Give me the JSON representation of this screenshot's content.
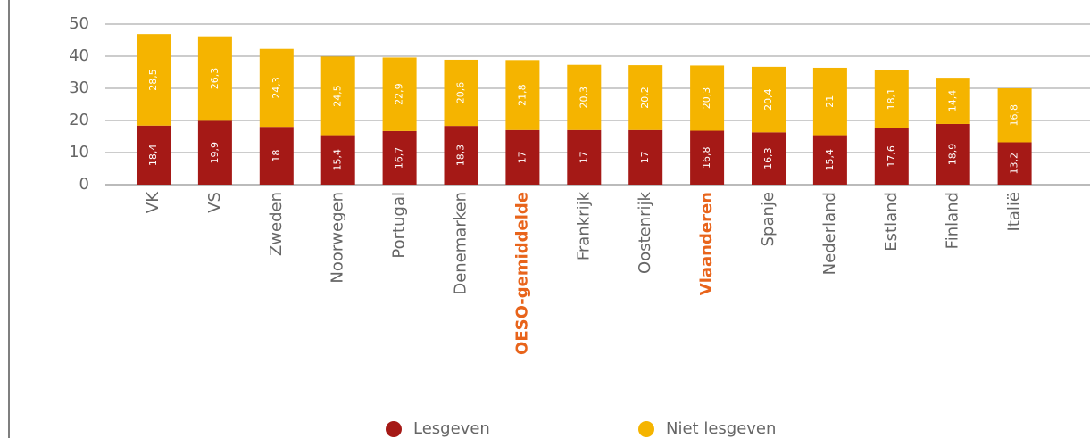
{
  "chart_data": {
    "type": "stacked_bar",
    "categories": [
      "VK",
      "VS",
      "Zweden",
      "Noorwegen",
      "Portugal",
      "Denemarken",
      "OESO-gemiddelde",
      "Frankrijk",
      "Oostenrijk",
      "Vlaanderen",
      "Spanje",
      "Nederland",
      "Estland",
      "Finland",
      "Italië"
    ],
    "highlighted": [
      6,
      9
    ],
    "series": [
      {
        "name": "Lesgeven",
        "color": "#a51916",
        "values": [
          18.4,
          19.9,
          18,
          15.4,
          16.7,
          18.3,
          17,
          17,
          17,
          16.8,
          16.3,
          15.4,
          17.6,
          18.9,
          13.2
        ],
        "value_labels": [
          "18,4",
          "19,9",
          "18",
          "15,4",
          "16,7",
          "18,3",
          "17",
          "17",
          "17",
          "16,8",
          "16,3",
          "15,4",
          "17,6",
          "18,9",
          "13,2"
        ]
      },
      {
        "name": "Niet lesgeven",
        "color": "#f5b400",
        "values": [
          28.5,
          26.3,
          24.3,
          24.5,
          22.9,
          20.6,
          21.8,
          20.3,
          20.2,
          20.3,
          20.4,
          21,
          18.1,
          14.4,
          16.8
        ],
        "value_labels": [
          "28,5",
          "26,3",
          "24,3",
          "24,5",
          "22,9",
          "20,6",
          "21,8",
          "20,3",
          "20,2",
          "20,3",
          "20,4",
          "21",
          "18,1",
          "14,4",
          "16,8"
        ]
      }
    ],
    "ylim": [
      0,
      50
    ],
    "yticks": [
      0,
      10,
      20,
      30,
      40,
      50
    ],
    "grid": true
  }
}
